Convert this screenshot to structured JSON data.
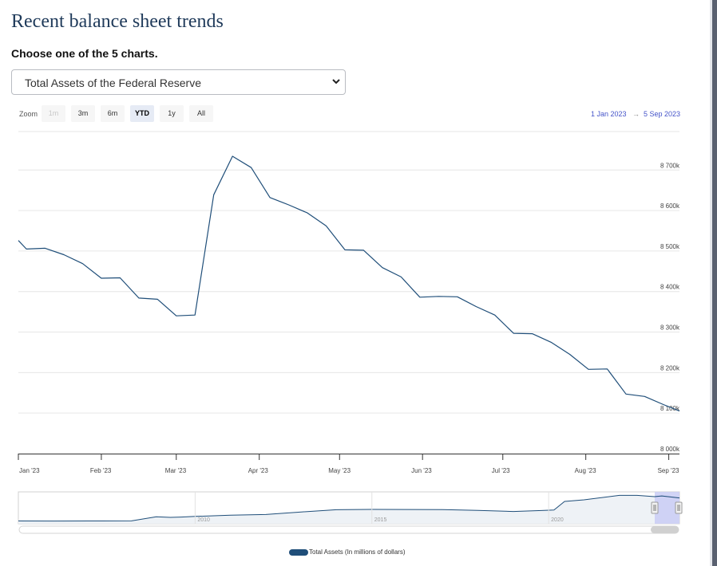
{
  "page": {
    "title": "Recent balance sheet trends",
    "subtitle": "Choose one of the 5 charts.",
    "select_value": "Total Assets of the Federal Reserve"
  },
  "zoom": {
    "label": "Zoom",
    "buttons": [
      {
        "label": "1m",
        "state": "disabled"
      },
      {
        "label": "3m",
        "state": "normal"
      },
      {
        "label": "6m",
        "state": "normal"
      },
      {
        "label": "YTD",
        "state": "active"
      },
      {
        "label": "1y",
        "state": "normal"
      },
      {
        "label": "All",
        "state": "normal"
      }
    ],
    "range_from": "1 Jan 2023",
    "range_arrow": "→",
    "range_to": "5 Sep 2023"
  },
  "colors": {
    "line": "#1f4e79",
    "range_link": "#4453c9",
    "navigator_mask": "#c9cdf5"
  },
  "chart_data": {
    "type": "line",
    "title": "",
    "ylabel": "",
    "ylim": [
      8000,
      8760
    ],
    "y_ticks": [
      8000,
      8100,
      8200,
      8300,
      8400,
      8500,
      8600,
      8700
    ],
    "y_tick_labels": [
      "8 000k",
      "8 100k",
      "8 200k",
      "8 300k",
      "8 400k",
      "8 500k",
      "8 600k",
      "8 700k"
    ],
    "x_range": [
      "2023-01-01",
      "2023-09-05"
    ],
    "x_ticks": [
      "2023-01-01",
      "2023-02-01",
      "2023-03-01",
      "2023-04-01",
      "2023-05-01",
      "2023-06-01",
      "2023-07-01",
      "2023-08-01",
      "2023-09-01"
    ],
    "x_tick_labels": [
      "Jan '23",
      "Feb '23",
      "Mar '23",
      "Apr '23",
      "May '23",
      "Jun '23",
      "Jul '23",
      "Aug '23",
      "Sep '23"
    ],
    "series": [
      {
        "name": "Total Assets (In millions of dollars)",
        "points": [
          {
            "x": "2023-01-01",
            "y": 8526
          },
          {
            "x": "2023-01-04",
            "y": 8505
          },
          {
            "x": "2023-01-11",
            "y": 8507
          },
          {
            "x": "2023-01-18",
            "y": 8491
          },
          {
            "x": "2023-01-25",
            "y": 8469
          },
          {
            "x": "2023-02-01",
            "y": 8433
          },
          {
            "x": "2023-02-08",
            "y": 8434
          },
          {
            "x": "2023-02-15",
            "y": 8384
          },
          {
            "x": "2023-02-22",
            "y": 8381
          },
          {
            "x": "2023-03-01",
            "y": 8340
          },
          {
            "x": "2023-03-08",
            "y": 8342
          },
          {
            "x": "2023-03-15",
            "y": 8639
          },
          {
            "x": "2023-03-22",
            "y": 8734
          },
          {
            "x": "2023-03-29",
            "y": 8706
          },
          {
            "x": "2023-04-05",
            "y": 8632
          },
          {
            "x": "2023-04-12",
            "y": 8614
          },
          {
            "x": "2023-04-19",
            "y": 8594
          },
          {
            "x": "2023-04-26",
            "y": 8562
          },
          {
            "x": "2023-05-03",
            "y": 8503
          },
          {
            "x": "2023-05-10",
            "y": 8502
          },
          {
            "x": "2023-05-17",
            "y": 8459
          },
          {
            "x": "2023-05-24",
            "y": 8436
          },
          {
            "x": "2023-05-31",
            "y": 8386
          },
          {
            "x": "2023-06-07",
            "y": 8388
          },
          {
            "x": "2023-06-14",
            "y": 8387
          },
          {
            "x": "2023-06-21",
            "y": 8363
          },
          {
            "x": "2023-06-28",
            "y": 8342
          },
          {
            "x": "2023-07-05",
            "y": 8297
          },
          {
            "x": "2023-07-12",
            "y": 8296
          },
          {
            "x": "2023-07-19",
            "y": 8275
          },
          {
            "x": "2023-07-26",
            "y": 8245
          },
          {
            "x": "2023-08-02",
            "y": 8208
          },
          {
            "x": "2023-08-09",
            "y": 8209
          },
          {
            "x": "2023-08-16",
            "y": 8147
          },
          {
            "x": "2023-08-23",
            "y": 8141
          },
          {
            "x": "2023-08-30",
            "y": 8121
          },
          {
            "x": "2023-09-05",
            "y": 8105
          }
        ]
      }
    ],
    "grid": true,
    "legend": "bottom-center",
    "navigator": {
      "x_range": [
        2005,
        2023.7
      ],
      "selected_range": [
        2023.0,
        2023.7
      ],
      "tick_labels": [
        "2010",
        "2015",
        "2020"
      ],
      "tick_values": [
        2010,
        2015,
        2020
      ],
      "ylim": [
        0,
        10000
      ],
      "points": [
        {
          "x": 2005.0,
          "y": 870
        },
        {
          "x": 2006.0,
          "y": 860
        },
        {
          "x": 2007.0,
          "y": 880
        },
        {
          "x": 2008.2,
          "y": 900
        },
        {
          "x": 2008.9,
          "y": 2200
        },
        {
          "x": 2009.3,
          "y": 2000
        },
        {
          "x": 2009.6,
          "y": 2100
        },
        {
          "x": 2010.0,
          "y": 2300
        },
        {
          "x": 2011.0,
          "y": 2700
        },
        {
          "x": 2012.0,
          "y": 2900
        },
        {
          "x": 2013.0,
          "y": 3700
        },
        {
          "x": 2014.0,
          "y": 4400
        },
        {
          "x": 2015.0,
          "y": 4500
        },
        {
          "x": 2016.0,
          "y": 4480
        },
        {
          "x": 2017.0,
          "y": 4460
        },
        {
          "x": 2018.0,
          "y": 4200
        },
        {
          "x": 2019.0,
          "y": 3850
        },
        {
          "x": 2019.8,
          "y": 4150
        },
        {
          "x": 2020.15,
          "y": 4300
        },
        {
          "x": 2020.45,
          "y": 7000
        },
        {
          "x": 2021.0,
          "y": 7500
        },
        {
          "x": 2022.0,
          "y": 8900
        },
        {
          "x": 2022.5,
          "y": 8900
        },
        {
          "x": 2023.0,
          "y": 8500
        },
        {
          "x": 2023.2,
          "y": 8730
        },
        {
          "x": 2023.7,
          "y": 8100
        }
      ]
    }
  },
  "legend": {
    "label": "Total Assets (In millions of dollars)"
  }
}
